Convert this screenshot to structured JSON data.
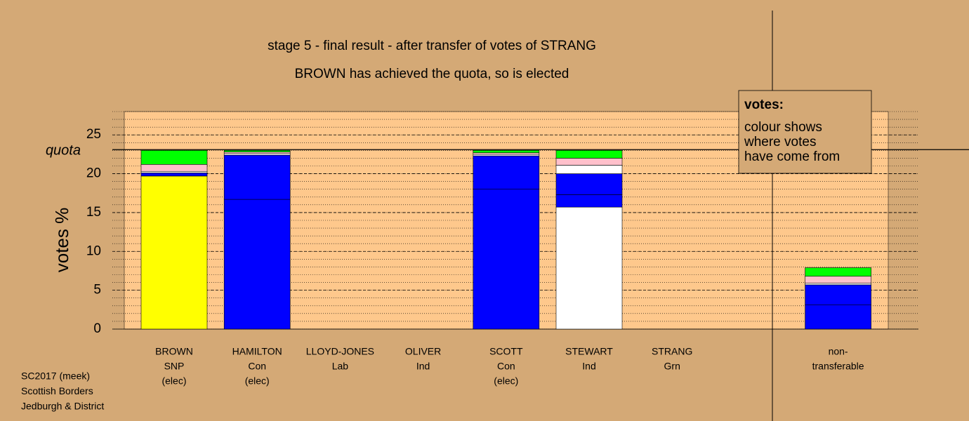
{
  "chart_data": {
    "type": "stacked-bar",
    "title": "stage 5 - final result - after transfer of votes of STRANG",
    "subtitle": "BROWN has achieved the quota, so is elected",
    "ylabel": "votes %",
    "ylim": [
      0,
      28
    ],
    "yticks": [
      0,
      5,
      10,
      15,
      20,
      25
    ],
    "grid": true,
    "minor_grid_step": 1,
    "quota": {
      "label": "quota",
      "value": 23.1
    },
    "divider": true,
    "categories": [
      {
        "lines": [
          "BROWN",
          "SNP",
          "(elec)"
        ],
        "segments": [
          {
            "color": "#ffff00",
            "value": 19.7
          },
          {
            "color": "#0000ff",
            "value": 0.4
          },
          {
            "color": "#ffffff",
            "value": 0.2
          },
          {
            "color": "#ffc0cb",
            "value": 0.9
          },
          {
            "color": "#00ff00",
            "value": 1.8
          }
        ]
      },
      {
        "lines": [
          "HAMILTON",
          "Con",
          "(elec)"
        ],
        "segments": [
          {
            "color": "#0000ff",
            "value": 16.7
          },
          {
            "color": "#0000ff",
            "value": 5.7
          },
          {
            "color": "#ffffff",
            "value": 0.2
          },
          {
            "color": "#ffc0cb",
            "value": 0.2
          },
          {
            "color": "#00ff00",
            "value": 0.2
          }
        ]
      },
      {
        "lines": [
          "LLOYD-JONES",
          "Lab"
        ],
        "segments": []
      },
      {
        "lines": [
          "OLIVER",
          "Ind"
        ],
        "segments": []
      },
      {
        "lines": [
          "SCOTT",
          "Con",
          "(elec)"
        ],
        "segments": [
          {
            "color": "#0000ff",
            "value": 18.0
          },
          {
            "color": "#0000ff",
            "value": 4.3
          },
          {
            "color": "#ffffff",
            "value": 0.2
          },
          {
            "color": "#ffc0cb",
            "value": 0.2
          },
          {
            "color": "#00ff00",
            "value": 0.3
          }
        ]
      },
      {
        "lines": [
          "STEWART",
          "Ind"
        ],
        "segments": [
          {
            "color": "#ffffff",
            "value": 15.7
          },
          {
            "color": "#0000ff",
            "value": 1.6
          },
          {
            "color": "#0000ff",
            "value": 2.7
          },
          {
            "color": "#ffffff",
            "value": 1.1
          },
          {
            "color": "#ffc0cb",
            "value": 0.9
          },
          {
            "color": "#00ff00",
            "value": 1.0
          }
        ]
      },
      {
        "lines": [
          "STRANG",
          "Grn"
        ],
        "segments": []
      },
      {
        "lines": [
          "non-",
          "transferable"
        ],
        "segments": [
          {
            "color": "#0000ff",
            "value": 3.1
          },
          {
            "color": "#0000ff",
            "value": 2.6
          },
          {
            "color": "#ffffff",
            "value": 0.2
          },
          {
            "color": "#ffc0cb",
            "value": 0.9
          },
          {
            "color": "#00ff00",
            "value": 1.1
          }
        ]
      }
    ],
    "legend": {
      "title": "votes:",
      "lines": [
        "colour shows",
        "where votes",
        "have come from"
      ]
    },
    "footer": [
      "SC2017 (meek)",
      "Scottish Borders",
      "Jedburgh & District"
    ]
  }
}
